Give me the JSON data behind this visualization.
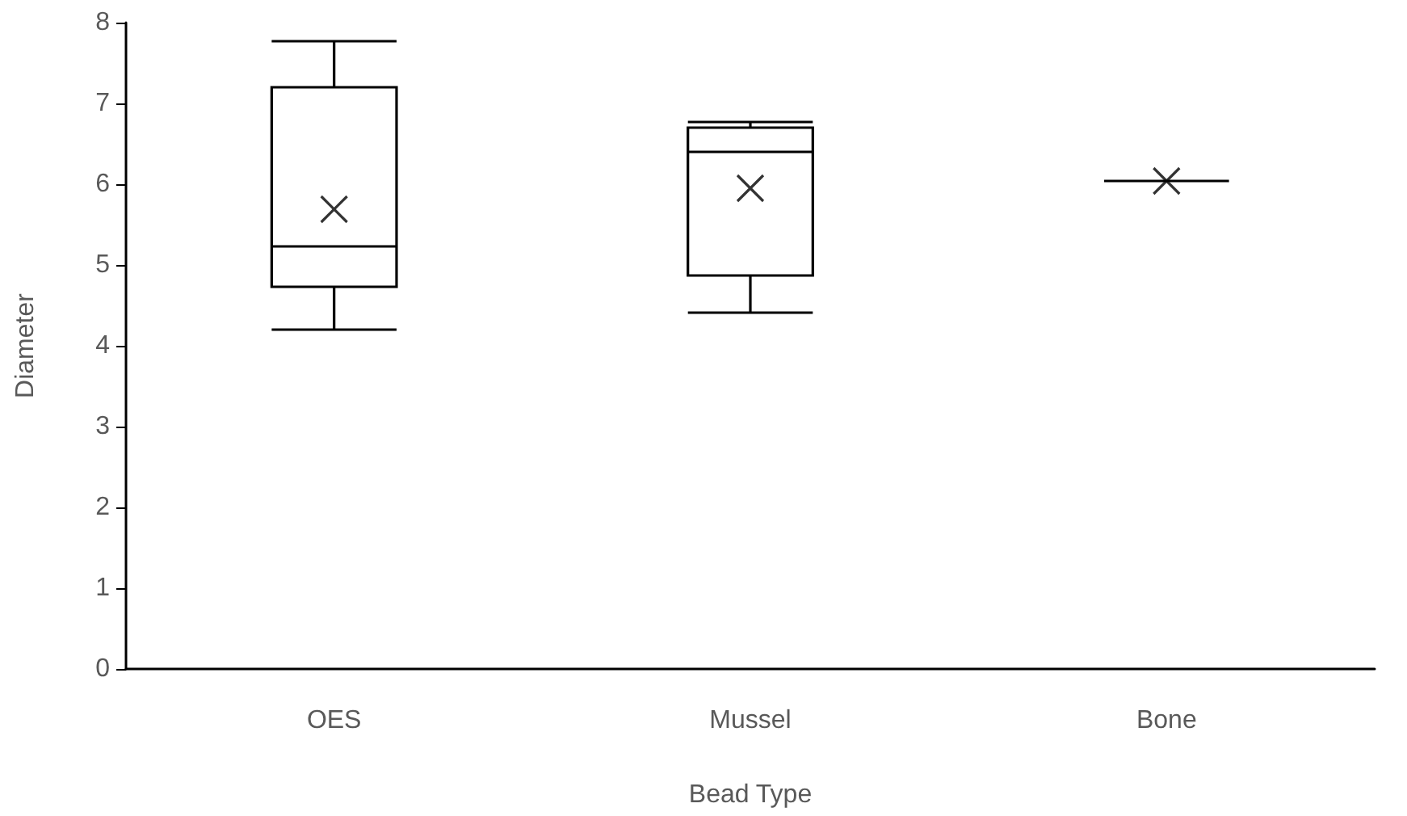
{
  "chart_data": {
    "type": "box",
    "xlabel": "Bead Type",
    "ylabel": "Diameter",
    "categories": [
      "OES",
      "Mussel",
      "Bone"
    ],
    "boxes": [
      {
        "low": 4.2,
        "q1": 4.73,
        "median": 5.23,
        "q3": 7.2,
        "high": 7.77,
        "mean": 5.69
      },
      {
        "low": 4.41,
        "q1": 4.87,
        "median": 6.4,
        "q3": 6.7,
        "high": 6.77,
        "mean": 5.95
      },
      {
        "low": 6.04,
        "q1": 6.04,
        "median": 6.04,
        "q3": 6.04,
        "high": 6.04,
        "mean": 6.04
      }
    ],
    "color": "#000000",
    "marker": "cross",
    "ylim": [
      0,
      8
    ],
    "yticks": [
      0,
      1,
      2,
      3,
      4,
      5,
      6,
      7,
      8
    ],
    "grid": false
  }
}
